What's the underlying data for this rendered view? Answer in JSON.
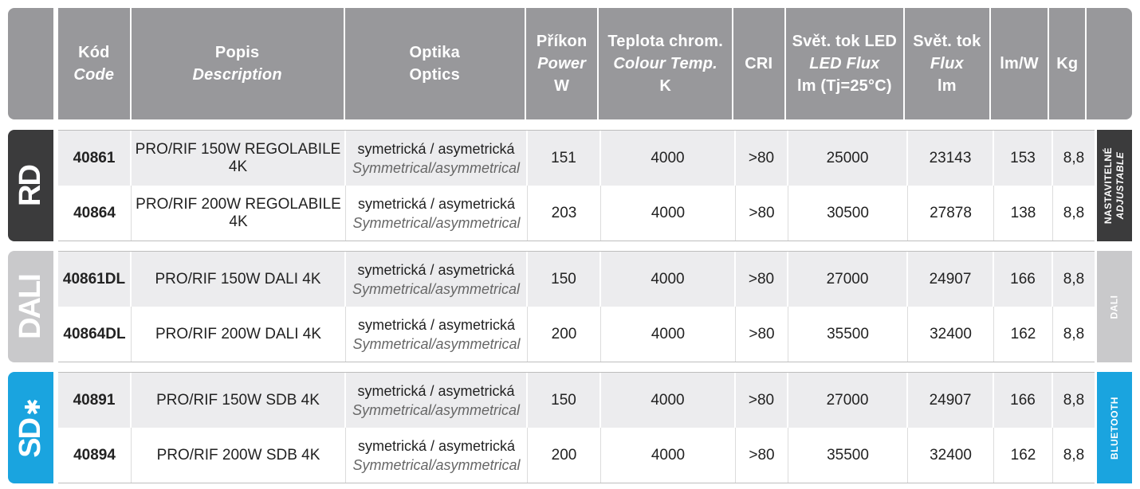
{
  "header": {
    "code": {
      "line1": "Kód",
      "line2": "Code"
    },
    "description": {
      "line1": "Popis",
      "line2": "Description"
    },
    "optics": {
      "line1": "Optika",
      "line2": "Optics"
    },
    "power": {
      "line1": "Příkon",
      "line2": "Power",
      "line3": "W"
    },
    "temp": {
      "line1": "Teplota chrom.",
      "line2": "Colour Temp.",
      "line3": "K"
    },
    "cri": {
      "line1": "CRI"
    },
    "led_flux": {
      "line1": "Svět. tok LED",
      "line2": "LED Flux",
      "line3": "lm (Tj=25°C)"
    },
    "flux": {
      "line1": "Svět. tok",
      "line2": "Flux",
      "line3": "lm"
    },
    "lmw": {
      "line1": "lm/W"
    },
    "kg": {
      "line1": "Kg"
    }
  },
  "groups": [
    {
      "logo": "RD",
      "side_label": "NASTAVITELNÉ",
      "side_label_en": "ADJUSTABLE",
      "rows": [
        {
          "code": "40861",
          "description": "PRO/RIF 150W REGOLABILE 4K",
          "optics_cz": "symetrická / asymetrická",
          "optics_en": "Symmetrical/asymmetrical",
          "power": "151",
          "temp": "4000",
          "cri": ">80",
          "led_flux": "25000",
          "flux": "23143",
          "lmw": "153",
          "kg": "8,8"
        },
        {
          "code": "40864",
          "description": "PRO/RIF 200W REGOLABILE 4K",
          "optics_cz": "symetrická / asymetrická",
          "optics_en": "Symmetrical/asymmetrical",
          "power": "203",
          "temp": "4000",
          "cri": ">80",
          "led_flux": "30500",
          "flux": "27878",
          "lmw": "138",
          "kg": "8,8"
        }
      ]
    },
    {
      "logo": "DALI",
      "side_label": "DALI",
      "side_label_en": "",
      "rows": [
        {
          "code": "40861DL",
          "description": "PRO/RIF 150W DALI 4K",
          "optics_cz": "symetrická / asymetrická",
          "optics_en": "Symmetrical/asymmetrical",
          "power": "150",
          "temp": "4000",
          "cri": ">80",
          "led_flux": "27000",
          "flux": "24907",
          "lmw": "166",
          "kg": "8,8"
        },
        {
          "code": "40864DL",
          "description": "PRO/RIF 200W DALI 4K",
          "optics_cz": "symetrická / asymetrická",
          "optics_en": "Symmetrical/asymmetrical",
          "power": "200",
          "temp": "4000",
          "cri": ">80",
          "led_flux": "35500",
          "flux": "32400",
          "lmw": "162",
          "kg": "8,8"
        }
      ]
    },
    {
      "logo": "SD",
      "side_label": "BLUETOOTH",
      "side_label_en": "",
      "rows": [
        {
          "code": "40891",
          "description": "PRO/RIF 150W SDB 4K",
          "optics_cz": "symetrická / asymetrická",
          "optics_en": "Symmetrical/asymmetrical",
          "power": "150",
          "temp": "4000",
          "cri": ">80",
          "led_flux": "27000",
          "flux": "24907",
          "lmw": "166",
          "kg": "8,8"
        },
        {
          "code": "40894",
          "description": "PRO/RIF 200W SDB 4K",
          "optics_cz": "symetrická / asymetrická",
          "optics_en": "Symmetrical/asymmetrical",
          "power": "200",
          "temp": "4000",
          "cri": ">80",
          "led_flux": "35500",
          "flux": "32400",
          "lmw": "162",
          "kg": "8,8"
        }
      ]
    }
  ],
  "colors": {
    "header": "#98989b",
    "rd": "#3b3b3c",
    "dali": "#c9c9cb",
    "bluetooth": "#1aa4df"
  }
}
